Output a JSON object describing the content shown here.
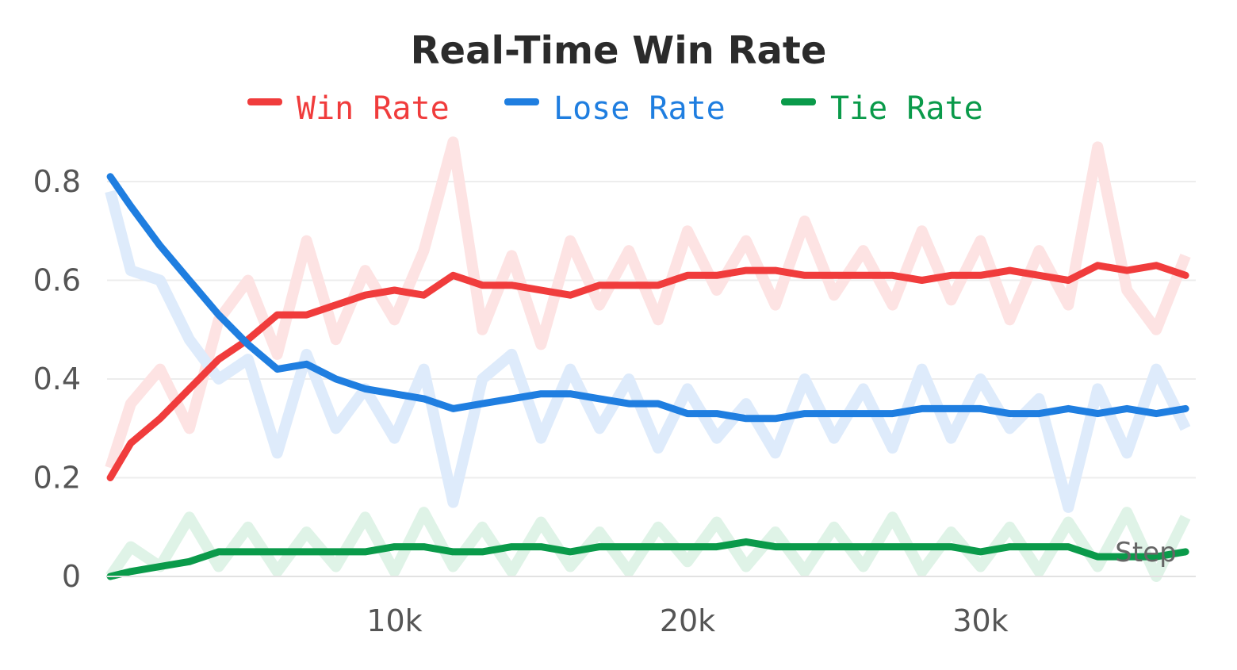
{
  "chart_data": {
    "type": "line",
    "title": "Real-Time Win Rate",
    "xlabel": "Step",
    "ylabel": "",
    "xlim": [
      0,
      37300
    ],
    "ylim": [
      0,
      0.8
    ],
    "xticks": [
      10000,
      20000,
      30000
    ],
    "xtick_labels": [
      "10k",
      "20k",
      "30k"
    ],
    "yticks": [
      0,
      0.2,
      0.4,
      0.6,
      0.8
    ],
    "ytick_labels": [
      "0",
      "0.2",
      "0.4",
      "0.6",
      "0.8"
    ],
    "grid": true,
    "legend_position": "top-center",
    "x": [
      300,
      1000,
      2000,
      3000,
      4000,
      5000,
      6000,
      7000,
      8000,
      9000,
      10000,
      11000,
      12000,
      13000,
      14000,
      15000,
      16000,
      17000,
      18000,
      19000,
      20000,
      21000,
      22000,
      23000,
      24000,
      25000,
      26000,
      27000,
      28000,
      29000,
      30000,
      31000,
      32000,
      33000,
      34000,
      35000,
      36000,
      37000
    ],
    "series": [
      {
        "name": "Win Rate",
        "color": "#f03c3c",
        "raw_color": "#fde3e3",
        "values": [
          0.2,
          0.27,
          0.32,
          0.38,
          0.44,
          0.48,
          0.53,
          0.53,
          0.55,
          0.57,
          0.58,
          0.57,
          0.61,
          0.59,
          0.59,
          0.58,
          0.57,
          0.59,
          0.59,
          0.59,
          0.61,
          0.61,
          0.62,
          0.62,
          0.61,
          0.61,
          0.61,
          0.61,
          0.6,
          0.61,
          0.61,
          0.62,
          0.61,
          0.6,
          0.63,
          0.62,
          0.63,
          0.61
        ],
        "raw": [
          0.22,
          0.35,
          0.42,
          0.3,
          0.52,
          0.6,
          0.45,
          0.68,
          0.48,
          0.62,
          0.52,
          0.66,
          0.88,
          0.5,
          0.65,
          0.47,
          0.68,
          0.55,
          0.66,
          0.52,
          0.7,
          0.58,
          0.68,
          0.55,
          0.72,
          0.57,
          0.66,
          0.55,
          0.7,
          0.56,
          0.68,
          0.52,
          0.66,
          0.55,
          0.87,
          0.58,
          0.5,
          0.65
        ]
      },
      {
        "name": "Lose Rate",
        "color": "#1f7ee0",
        "raw_color": "#deebfb",
        "values": [
          0.81,
          0.75,
          0.67,
          0.6,
          0.53,
          0.47,
          0.42,
          0.43,
          0.4,
          0.38,
          0.37,
          0.36,
          0.34,
          0.35,
          0.36,
          0.37,
          0.37,
          0.36,
          0.35,
          0.35,
          0.33,
          0.33,
          0.32,
          0.32,
          0.33,
          0.33,
          0.33,
          0.33,
          0.34,
          0.34,
          0.34,
          0.33,
          0.33,
          0.34,
          0.33,
          0.34,
          0.33,
          0.34
        ],
        "raw": [
          0.78,
          0.62,
          0.6,
          0.48,
          0.4,
          0.44,
          0.25,
          0.45,
          0.3,
          0.38,
          0.28,
          0.42,
          0.15,
          0.4,
          0.45,
          0.28,
          0.42,
          0.3,
          0.4,
          0.26,
          0.38,
          0.28,
          0.35,
          0.25,
          0.4,
          0.28,
          0.38,
          0.26,
          0.42,
          0.28,
          0.4,
          0.3,
          0.36,
          0.14,
          0.38,
          0.25,
          0.42,
          0.3
        ]
      },
      {
        "name": "Tie Rate",
        "color": "#0a9a4a",
        "raw_color": "#dff3e7",
        "values": [
          0.0,
          0.01,
          0.02,
          0.03,
          0.05,
          0.05,
          0.05,
          0.05,
          0.05,
          0.05,
          0.06,
          0.06,
          0.05,
          0.05,
          0.06,
          0.06,
          0.05,
          0.06,
          0.06,
          0.06,
          0.06,
          0.06,
          0.07,
          0.06,
          0.06,
          0.06,
          0.06,
          0.06,
          0.06,
          0.06,
          0.05,
          0.06,
          0.06,
          0.06,
          0.04,
          0.04,
          0.04,
          0.05
        ],
        "raw": [
          0.0,
          0.06,
          0.02,
          0.12,
          0.02,
          0.1,
          0.01,
          0.09,
          0.02,
          0.12,
          0.01,
          0.13,
          0.02,
          0.1,
          0.01,
          0.11,
          0.02,
          0.09,
          0.01,
          0.1,
          0.03,
          0.11,
          0.02,
          0.09,
          0.01,
          0.1,
          0.02,
          0.12,
          0.01,
          0.09,
          0.02,
          0.1,
          0.01,
          0.11,
          0.02,
          0.13,
          0.0,
          0.12
        ]
      }
    ]
  }
}
